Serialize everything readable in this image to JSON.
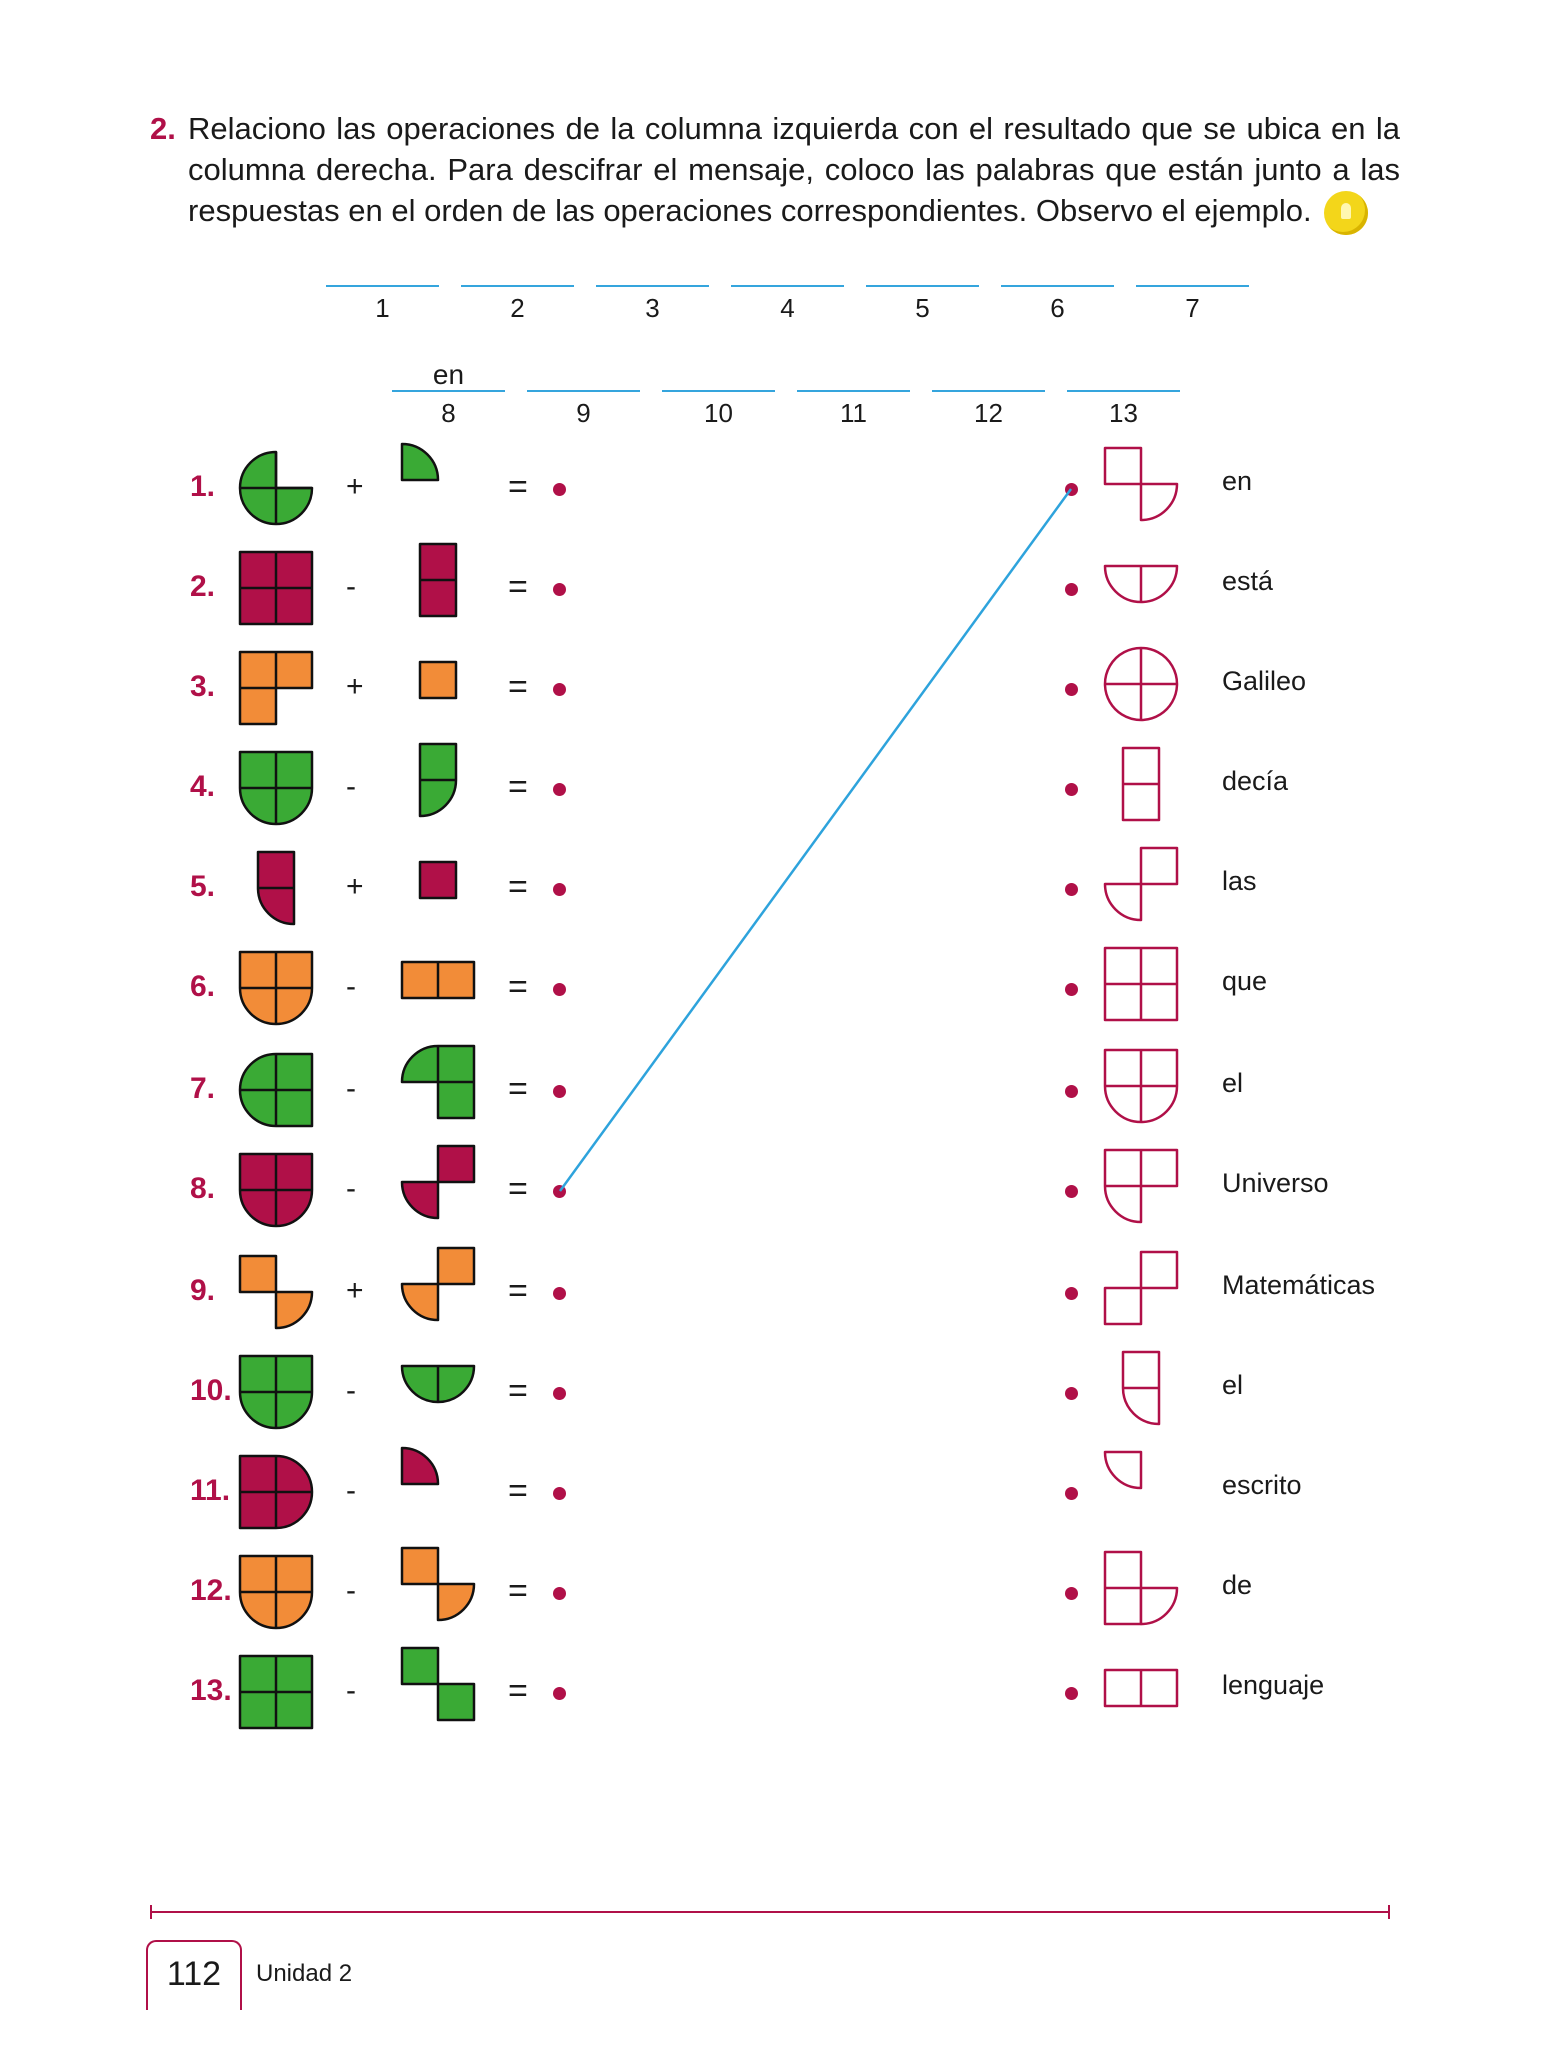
{
  "instruction": {
    "number": "2.",
    "text": "Relaciono las operaciones de la columna izquierda con el resultado que se ubica en la columna derecha. Para descifrar el mensaje, coloco las palabras que están junto a las respuestas en el orden de las operaciones correspondientes. Observo el ejemplo.",
    "icon": "lightbulb-icon"
  },
  "blanks": [
    {
      "number": "1",
      "answer": ""
    },
    {
      "number": "2",
      "answer": ""
    },
    {
      "number": "3",
      "answer": ""
    },
    {
      "number": "4",
      "answer": ""
    },
    {
      "number": "5",
      "answer": ""
    },
    {
      "number": "6",
      "answer": ""
    },
    {
      "number": "7",
      "answer": ""
    },
    {
      "number": "8",
      "answer": "en"
    },
    {
      "number": "9",
      "answer": ""
    },
    {
      "number": "10",
      "answer": ""
    },
    {
      "number": "11",
      "answer": ""
    },
    {
      "number": "12",
      "answer": ""
    },
    {
      "number": "13",
      "answer": ""
    }
  ],
  "colors": {
    "green": "#3aaa35",
    "crimson": "#b01048",
    "orange": "#f28c38",
    "line": "#2ea3dc",
    "outline": "#b01048"
  },
  "operations": [
    {
      "label": "1.",
      "operator": "+",
      "equals": "=",
      "color": "green",
      "left": "three-quarter-disc",
      "right": "quarter-disc"
    },
    {
      "label": "2.",
      "operator": "-",
      "equals": "=",
      "color": "crimson",
      "left": "square-4",
      "right": "column-2"
    },
    {
      "label": "3.",
      "operator": "+",
      "equals": "=",
      "color": "orange",
      "left": "l-three-squares",
      "right": "single-square"
    },
    {
      "label": "4.",
      "operator": "-",
      "equals": "=",
      "color": "green",
      "left": "shield",
      "right": "half-shield"
    },
    {
      "label": "5.",
      "operator": "+",
      "equals": "=",
      "color": "crimson",
      "left": "square-over-quarter",
      "right": "single-square"
    },
    {
      "label": "6.",
      "operator": "-",
      "equals": "=",
      "color": "orange",
      "left": "shield",
      "right": "row-2"
    },
    {
      "label": "7.",
      "operator": "-",
      "equals": "=",
      "color": "green",
      "left": "rounded-square",
      "right": "three-with-quarter"
    },
    {
      "label": "8.",
      "operator": "-",
      "equals": "=",
      "color": "crimson",
      "left": "shield",
      "right": "diagonal-square-quarter"
    },
    {
      "label": "9.",
      "operator": "+",
      "equals": "=",
      "color": "orange",
      "left": "square-and-quarter",
      "right": "diagonal-square-quarter"
    },
    {
      "label": "10.",
      "operator": "-",
      "equals": "=",
      "color": "green",
      "left": "shield",
      "right": "half-disc"
    },
    {
      "label": "11.",
      "operator": "-",
      "equals": "=",
      "color": "crimson",
      "left": "d-shape",
      "right": "quarter-disc"
    },
    {
      "label": "12.",
      "operator": "-",
      "equals": "=",
      "color": "orange",
      "left": "shield",
      "right": "square-and-quarter"
    },
    {
      "label": "13.",
      "operator": "-",
      "equals": "=",
      "color": "green",
      "left": "square-4",
      "right": "diagonal-squares"
    }
  ],
  "answers": [
    {
      "word": "en",
      "shape": "square-and-quarter"
    },
    {
      "word": "está",
      "shape": "half-disc"
    },
    {
      "word": "Galileo",
      "shape": "circle-4"
    },
    {
      "word": "decía",
      "shape": "column-2"
    },
    {
      "word": "las",
      "shape": "quarter-and-square"
    },
    {
      "word": "que",
      "shape": "square-4"
    },
    {
      "word": "el",
      "shape": "shield"
    },
    {
      "word": "Universo",
      "shape": "three-with-quarter-bl"
    },
    {
      "word": "Matemáticas",
      "shape": "diagonal-squares-up"
    },
    {
      "word": "el",
      "shape": "square-over-quarter"
    },
    {
      "word": "escrito",
      "shape": "quarter-disc-small"
    },
    {
      "word": "de",
      "shape": "column-with-quarter"
    },
    {
      "word": "lenguaje",
      "shape": "row-2"
    }
  ],
  "example_link": {
    "from_operation": "8.",
    "to_answer": "en"
  },
  "footer": {
    "page": "112",
    "unit": "Unidad 2"
  }
}
